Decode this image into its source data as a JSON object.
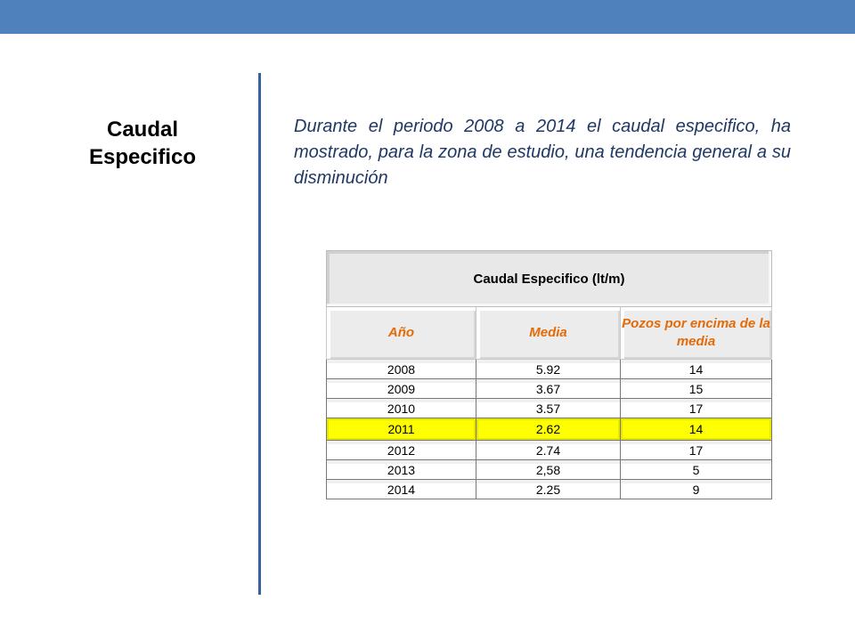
{
  "sidebar": {
    "title": "Caudal Especifico"
  },
  "content": {
    "paragraph": "Durante el periodo 2008 a 2014 el caudal especifico, ha mostrado, para la zona de estudio, una tendencia general a su disminución"
  },
  "table": {
    "caption": "Caudal Especifico (lt/m)",
    "headers": [
      "Año",
      "Media",
      "Pozos por encima de la media"
    ],
    "rows": [
      [
        "2008",
        "5.92",
        "14"
      ],
      [
        "2009",
        "3.67",
        "15"
      ],
      [
        "2010",
        "3.57",
        "17"
      ],
      [
        "2011",
        "2.62",
        "14"
      ],
      [
        "2012",
        "2.74",
        "17"
      ],
      [
        "2013",
        "2,58",
        "5"
      ],
      [
        "2014",
        "2.25",
        "9"
      ]
    ],
    "highlighted_row": "2011"
  },
  "colors": {
    "accent_bar": "#4f81bd",
    "divider": "#3a5fa0",
    "header_text": "#e26b0a",
    "highlight": "#ffff00",
    "body_text": "#1f3864"
  }
}
